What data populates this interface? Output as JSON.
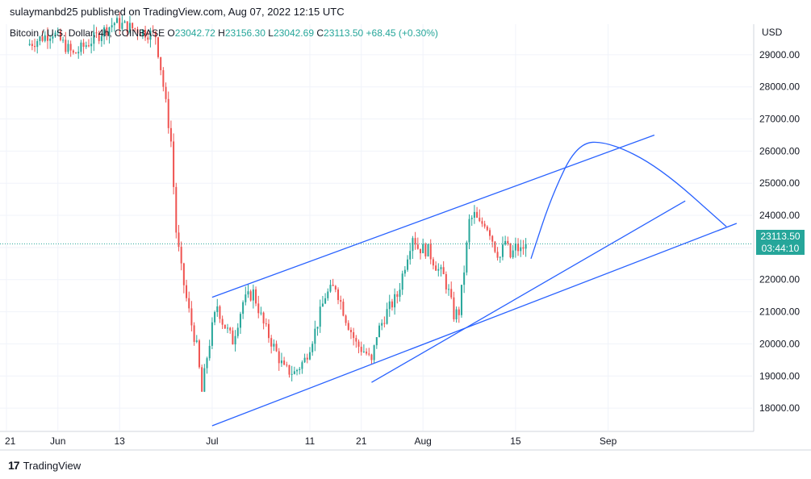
{
  "header": {
    "publisher": "sulaymanbd25 published on TradingView.com, Aug 07, 2022 12:15 UTC"
  },
  "legend": {
    "symbol": "Bitcoin / U.S. Dollar, 4h, COINBASE",
    "open_label": "O",
    "open": "23042.72",
    "high_label": "H",
    "high": "23156.30",
    "low_label": "L",
    "low": "23042.69",
    "close_label": "C",
    "close": "23113.50",
    "change": "+68.45 (+0.30%)"
  },
  "price_label": {
    "price": "23113.50",
    "countdown": "03:44:10"
  },
  "footer": {
    "logo": "17",
    "brand": "TradingView"
  },
  "colors": {
    "up": "#26a69a",
    "down": "#ef5350",
    "drawing": "#2962ff",
    "grid": "#f0f3fa",
    "current_line": "#26a69a"
  },
  "chart_data": {
    "type": "candlestick",
    "currency": "USD",
    "x_ticks": [
      "21",
      "Jun",
      "13",
      "Jul",
      "11",
      "21",
      "Aug",
      "15",
      "Sep"
    ],
    "y_ticks": [
      "18000.00",
      "19000.00",
      "20000.00",
      "21000.00",
      "22000.00",
      "23000.00",
      "24000.00",
      "25000.00",
      "26000.00",
      "27000.00",
      "28000.00",
      "29000.00"
    ],
    "ylim": [
      17300,
      29950
    ],
    "grid": true,
    "current_price": 23113.5,
    "price_path": [
      {
        "d": 0,
        "p": 29300
      },
      {
        "d": 5,
        "p": 29700
      },
      {
        "d": 9,
        "p": 29000
      },
      {
        "d": 13,
        "p": 29500
      },
      {
        "d": 17,
        "p": 30000
      },
      {
        "d": 21,
        "p": 29800
      },
      {
        "d": 25,
        "p": 29600
      },
      {
        "d": 26,
        "p": 28600
      },
      {
        "d": 28,
        "p": 26300
      },
      {
        "d": 29,
        "p": 23500
      },
      {
        "d": 30,
        "p": 22300
      },
      {
        "d": 31,
        "p": 21400
      },
      {
        "d": 32,
        "p": 20600
      },
      {
        "d": 33,
        "p": 19900
      },
      {
        "d": 34,
        "p": 18500
      },
      {
        "d": 35,
        "p": 19600
      },
      {
        "d": 36,
        "p": 20500
      },
      {
        "d": 37,
        "p": 21200
      },
      {
        "d": 38,
        "p": 20700
      },
      {
        "d": 40,
        "p": 20100
      },
      {
        "d": 42,
        "p": 21300
      },
      {
        "d": 44,
        "p": 21600
      },
      {
        "d": 46,
        "p": 20600
      },
      {
        "d": 48,
        "p": 19900
      },
      {
        "d": 50,
        "p": 19200
      },
      {
        "d": 52,
        "p": 19100
      },
      {
        "d": 54,
        "p": 19500
      },
      {
        "d": 56,
        "p": 20400
      },
      {
        "d": 58,
        "p": 21500
      },
      {
        "d": 60,
        "p": 21800
      },
      {
        "d": 62,
        "p": 20800
      },
      {
        "d": 64,
        "p": 20000
      },
      {
        "d": 66,
        "p": 19700
      },
      {
        "d": 67,
        "p": 19400
      },
      {
        "d": 68,
        "p": 20300
      },
      {
        "d": 70,
        "p": 21000
      },
      {
        "d": 72,
        "p": 21500
      },
      {
        "d": 74,
        "p": 22800
      },
      {
        "d": 75,
        "p": 23400
      },
      {
        "d": 76,
        "p": 23000
      },
      {
        "d": 78,
        "p": 22900
      },
      {
        "d": 80,
        "p": 22300
      },
      {
        "d": 81,
        "p": 22100
      },
      {
        "d": 82,
        "p": 21600
      },
      {
        "d": 83,
        "p": 20900
      },
      {
        "d": 84,
        "p": 21000
      },
      {
        "d": 85,
        "p": 22300
      },
      {
        "d": 86,
        "p": 23800
      },
      {
        "d": 87,
        "p": 24000
      },
      {
        "d": 88,
        "p": 23700
      },
      {
        "d": 89,
        "p": 23800
      },
      {
        "d": 90,
        "p": 23500
      },
      {
        "d": 91,
        "p": 23000
      },
      {
        "d": 92,
        "p": 22700
      },
      {
        "d": 93,
        "p": 23200
      },
      {
        "d": 94,
        "p": 22700
      },
      {
        "d": 95,
        "p": 23000
      },
      {
        "d": 96,
        "p": 22900
      },
      {
        "d": 97,
        "p": 23113
      }
    ],
    "drawings": [
      {
        "name": "channel-upper-line",
        "type": "line",
        "points": [
          {
            "d": 36,
            "p": 21450
          },
          {
            "d": 122,
            "p": 26500
          }
        ]
      },
      {
        "name": "channel-lower-line",
        "type": "line",
        "points": [
          {
            "d": 36,
            "p": 17450
          },
          {
            "d": 138,
            "p": 23750
          }
        ]
      },
      {
        "name": "steep-support-line",
        "type": "line",
        "points": [
          {
            "d": 67,
            "p": 18800
          },
          {
            "d": 128,
            "p": 24450
          }
        ]
      },
      {
        "name": "projection-curve",
        "type": "curve",
        "points": [
          {
            "d": 98,
            "p": 22650
          },
          {
            "d": 102,
            "p": 24600
          },
          {
            "d": 107,
            "p": 26250
          },
          {
            "d": 113,
            "p": 26300
          },
          {
            "d": 123,
            "p": 25500
          },
          {
            "d": 136,
            "p": 23650
          }
        ]
      }
    ]
  }
}
